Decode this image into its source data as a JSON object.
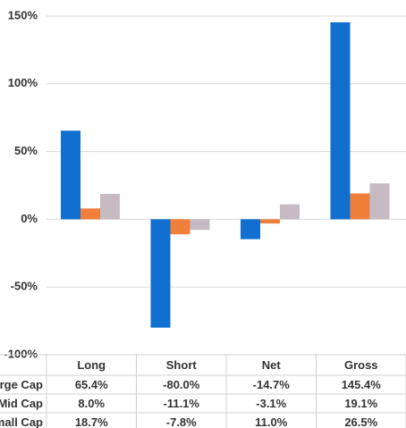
{
  "chart_data": {
    "type": "bar",
    "categories": [
      "Long",
      "Short",
      "Net",
      "Gross"
    ],
    "series": [
      {
        "name": "Large Cap",
        "color": "#1170cf",
        "values": [
          65.4,
          -80.0,
          -14.7,
          145.4
        ],
        "value_labels": [
          "65.4%",
          "-80.0%",
          "-14.7%",
          "145.4%"
        ]
      },
      {
        "name": "Mid Cap",
        "color": "#f07f3c",
        "values": [
          8.0,
          -11.1,
          -3.1,
          19.1
        ],
        "value_labels": [
          "8.0%",
          "-11.1%",
          "-3.1%",
          "19.1%"
        ]
      },
      {
        "name": "Small Cap",
        "color": "#c6bbc3",
        "values": [
          18.7,
          -7.8,
          11.0,
          26.5
        ],
        "value_labels": [
          "18.7%",
          "-7.8%",
          "11.0%",
          "26.5%"
        ]
      }
    ],
    "ylim": [
      -100,
      150
    ],
    "yticks": [
      {
        "value": -100,
        "label": "-100%"
      },
      {
        "value": -50,
        "label": "-50%"
      },
      {
        "value": 0,
        "label": "0%"
      },
      {
        "value": 50,
        "label": "50%"
      },
      {
        "value": 100,
        "label": "100%"
      },
      {
        "value": 150,
        "label": "150%"
      }
    ],
    "grid": true
  }
}
